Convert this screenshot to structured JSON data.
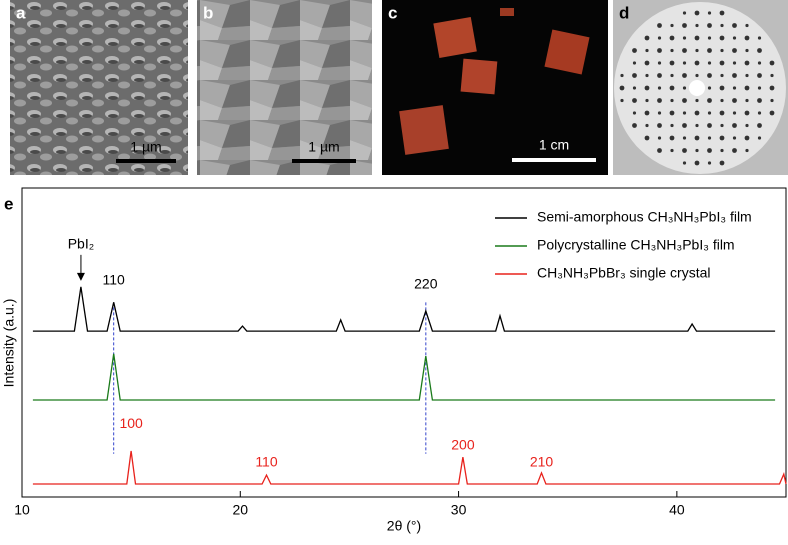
{
  "panels": {
    "a": {
      "label": "a",
      "scale_bar": "1 µm"
    },
    "b": {
      "label": "b",
      "scale_bar": "1 µm"
    },
    "c": {
      "label": "c",
      "scale_bar": "1 cm"
    },
    "d": {
      "label": "d"
    }
  },
  "chart_data": {
    "type": "line",
    "panel_label": "e",
    "x_label": "2θ (°)",
    "y_label": "Intensity (a.u.)",
    "xlim": [
      10,
      45
    ],
    "xticks": [
      10,
      20,
      30,
      40
    ],
    "ylim": [
      0,
      100
    ],
    "series": [
      {
        "name": "Semi-amorphous CH₃NH₃PbI₃ film",
        "color": "#000000",
        "x": [
          10.5,
          12.4,
          12.7,
          13.0,
          13.9,
          14.2,
          14.5,
          19.9,
          20.1,
          20.3,
          24.4,
          24.6,
          24.8,
          28.2,
          28.5,
          28.8,
          31.7,
          31.9,
          32.1,
          40.5,
          40.7,
          40.9,
          44.5
        ],
        "values": [
          53.7,
          53.7,
          68,
          53.7,
          53.7,
          63,
          53.7,
          53.7,
          55.3,
          53.7,
          53.7,
          57.3,
          53.7,
          53.7,
          60.2,
          53.7,
          53.7,
          58.6,
          53.7,
          53.7,
          56,
          53.7,
          53.7
        ]
      },
      {
        "name": "Polycrystalline CH₃NH₃PbI₃ film",
        "color": "#1a7a1a",
        "x": [
          10.5,
          13.9,
          14.2,
          14.5,
          28.2,
          28.5,
          28.8,
          44.5
        ],
        "values": [
          31.4,
          31.4,
          46.3,
          31.4,
          31.4,
          45.6,
          31.4,
          31.4
        ]
      },
      {
        "name": "CH₃NH₃PbBr₃ single crystal",
        "color": "#e8221c",
        "x": [
          10.5,
          14.8,
          15.0,
          15.2,
          21.0,
          21.2,
          21.4,
          30.0,
          30.2,
          30.4,
          33.6,
          33.8,
          34.0,
          44.7,
          44.9,
          45
        ],
        "values": [
          4.2,
          4.2,
          14.9,
          4.2,
          4.2,
          7.1,
          4.2,
          4.2,
          12.9,
          4.2,
          4.2,
          7.8,
          4.2,
          4.2,
          7.4,
          4.2
        ]
      }
    ],
    "reference_lines": [
      14.2,
      28.5
    ],
    "annotations": [
      {
        "text": "PbI₂",
        "x": 12.7,
        "y": 81.6,
        "color": "#000000",
        "arrow": true
      },
      {
        "text": "110",
        "x": 14.2,
        "y": 70,
        "color": "#000000"
      },
      {
        "text": "220",
        "x": 28.5,
        "y": 68.6,
        "color": "#000000"
      },
      {
        "text": "100",
        "x": 15.0,
        "y": 23.6,
        "color": "#e8221c"
      },
      {
        "text": "110",
        "x": 21.2,
        "y": 11,
        "color": "#e8221c"
      },
      {
        "text": "200",
        "x": 30.2,
        "y": 16.5,
        "color": "#e8221c"
      },
      {
        "text": "210",
        "x": 33.8,
        "y": 11,
        "color": "#e8221c"
      }
    ]
  }
}
